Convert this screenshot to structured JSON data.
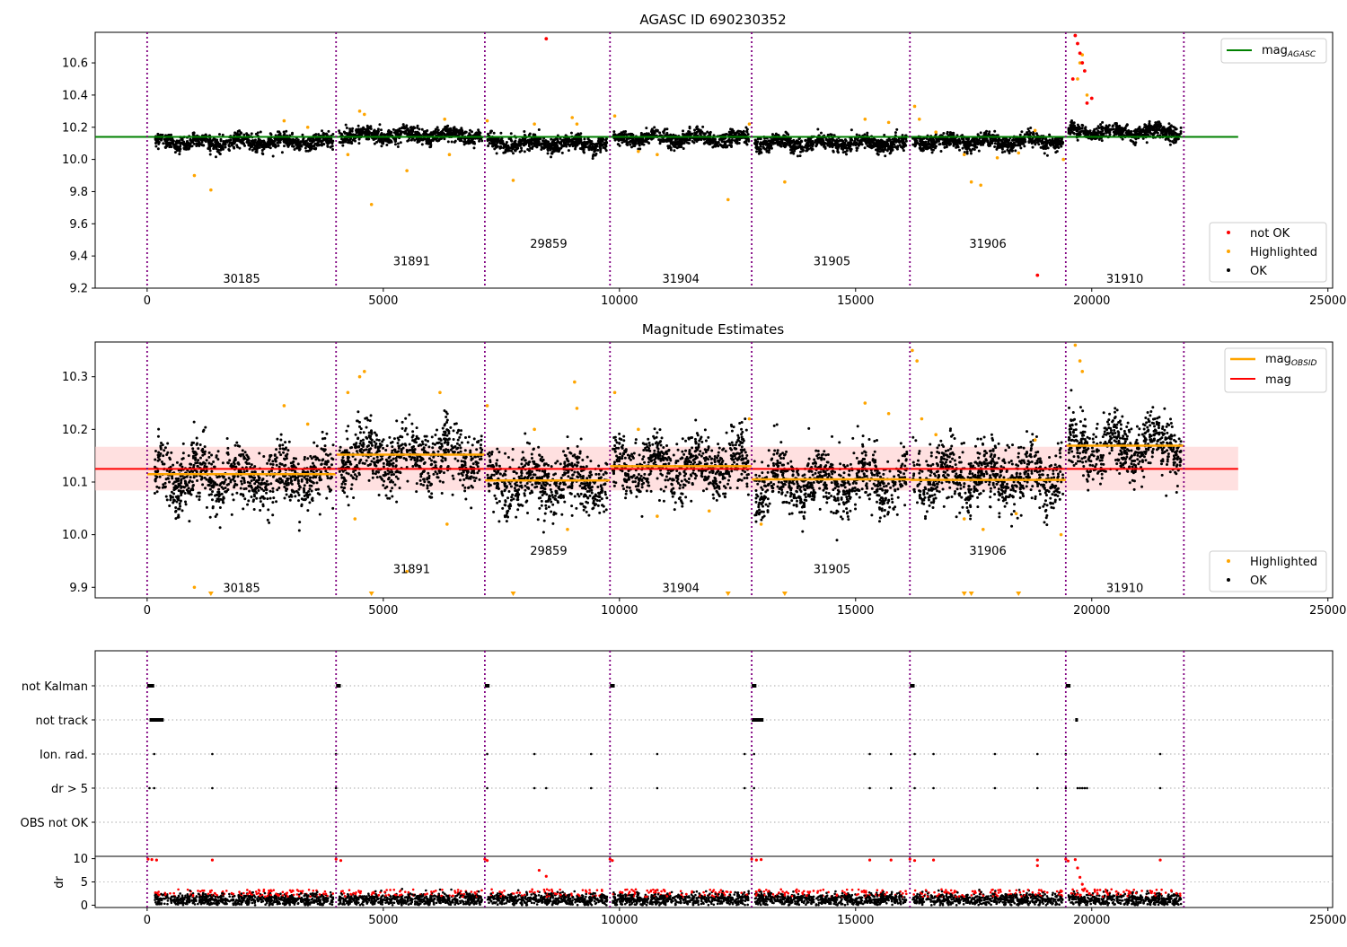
{
  "figure": {
    "lc_title": "AGASC ID 690230352",
    "mag_title": "Magnitude Estimates",
    "colors": {
      "not_ok": "#ff0000",
      "highlighted": "#ffa500",
      "ok": "#000000",
      "mag_agasc_line": "#008000",
      "mag_line": "#ff0000",
      "mag_band": "#ffcccc",
      "obsid_line": "#ffa500",
      "boundary": "#800080"
    }
  },
  "chart_data": [
    {
      "type": "scatter",
      "name": "lightcurve",
      "title": "AGASC ID 690230352",
      "xlim": [
        -1100,
        25100
      ],
      "ylim": [
        9.2,
        10.79
      ],
      "xticks": [
        0,
        5000,
        10000,
        15000,
        20000,
        25000
      ],
      "xtick_labels": [
        "0",
        "5000",
        "10000",
        "15000",
        "20000",
        "25000"
      ],
      "yticks": [
        9.2,
        9.4,
        9.6,
        9.8,
        10.0,
        10.2,
        10.4,
        10.6
      ],
      "ytick_labels": [
        "9.2",
        "9.4",
        "9.6",
        "9.8",
        "10.0",
        "10.2",
        "10.4",
        "10.6"
      ],
      "mag_agasc": 10.14,
      "mag_agasc_xrange": [
        -1100,
        23100
      ],
      "obsid_boundaries": [
        0,
        4000,
        7150,
        9800,
        12800,
        16150,
        19450,
        21950
      ],
      "obsid_labels": [
        {
          "label": "30185",
          "x": 2000,
          "y": 9.26
        },
        {
          "label": "31891",
          "x": 5600,
          "y": 9.37
        },
        {
          "label": "29859",
          "x": 8500,
          "y": 9.48
        },
        {
          "label": "31904",
          "x": 11300,
          "y": 9.26
        },
        {
          "label": "31905",
          "x": 14500,
          "y": 9.37
        },
        {
          "label": "31906",
          "x": 17800,
          "y": 9.48
        },
        {
          "label": "31910",
          "x": 20700,
          "y": 9.26
        }
      ],
      "legend_upper": {
        "position": "upper right",
        "entries": [
          "mag_AGASC"
        ]
      },
      "legend_lower": {
        "position": "lower right",
        "entries": [
          "not OK",
          "Highlighted",
          "OK"
        ]
      },
      "segments": [
        {
          "x": [
            100,
            4000
          ],
          "mean": 10.11,
          "spread": 0.05
        },
        {
          "x": [
            4000,
            7150
          ],
          "mean": 10.15,
          "spread": 0.05
        },
        {
          "x": [
            7150,
            9800
          ],
          "mean": 10.1,
          "spread": 0.05
        },
        {
          "x": [
            9800,
            12800
          ],
          "mean": 10.13,
          "spread": 0.05
        },
        {
          "x": [
            12800,
            16150
          ],
          "mean": 10.1,
          "spread": 0.05
        },
        {
          "x": [
            16150,
            19450
          ],
          "mean": 10.11,
          "spread": 0.05
        },
        {
          "x": [
            19450,
            21950
          ],
          "mean": 10.17,
          "spread": 0.05
        }
      ],
      "highlighted_points": [
        [
          1000,
          9.9
        ],
        [
          1350,
          9.81
        ],
        [
          2900,
          10.24
        ],
        [
          3400,
          10.2
        ],
        [
          4250,
          10.03
        ],
        [
          4500,
          10.3
        ],
        [
          4600,
          10.28
        ],
        [
          4750,
          9.72
        ],
        [
          5500,
          9.93
        ],
        [
          6300,
          10.25
        ],
        [
          6400,
          10.03
        ],
        [
          7200,
          10.24
        ],
        [
          7750,
          9.87
        ],
        [
          8200,
          10.22
        ],
        [
          9000,
          10.26
        ],
        [
          9100,
          10.22
        ],
        [
          9900,
          10.27
        ],
        [
          10400,
          10.05
        ],
        [
          10800,
          10.03
        ],
        [
          12300,
          9.75
        ],
        [
          12750,
          10.22
        ],
        [
          13500,
          9.86
        ],
        [
          15200,
          10.25
        ],
        [
          15700,
          10.23
        ],
        [
          16250,
          10.33
        ],
        [
          16350,
          10.25
        ],
        [
          16700,
          10.17
        ],
        [
          17300,
          10.03
        ],
        [
          17450,
          9.86
        ],
        [
          17650,
          9.84
        ],
        [
          18000,
          10.01
        ],
        [
          18450,
          10.04
        ],
        [
          18800,
          10.18
        ],
        [
          19400,
          10.0
        ],
        [
          19700,
          10.5
        ],
        [
          19750,
          10.6
        ],
        [
          19800,
          10.65
        ],
        [
          19900,
          10.4
        ]
      ],
      "not_ok_points": [
        [
          8450,
          10.75
        ],
        [
          18850,
          9.28
        ],
        [
          19650,
          10.77
        ],
        [
          19700,
          10.72
        ],
        [
          19750,
          10.66
        ],
        [
          19800,
          10.6
        ],
        [
          19850,
          10.55
        ],
        [
          19900,
          10.35
        ],
        [
          20000,
          10.38
        ],
        [
          19600,
          10.5
        ]
      ]
    },
    {
      "type": "scatter",
      "name": "magnitude_estimates",
      "title": "Magnitude Estimates",
      "xlim": [
        -1100,
        25100
      ],
      "ylim": [
        9.88,
        10.366
      ],
      "xticks": [
        0,
        5000,
        10000,
        15000,
        20000,
        25000
      ],
      "xtick_labels": [
        "0",
        "5000",
        "10000",
        "15000",
        "20000",
        "25000"
      ],
      "yticks": [
        9.9,
        10.0,
        10.1,
        10.2,
        10.3
      ],
      "ytick_labels": [
        "9.9",
        "10.0",
        "10.1",
        "10.2",
        "10.3"
      ],
      "mag": 10.125,
      "mag_band": [
        10.084,
        10.167
      ],
      "mag_xrange": [
        -1100,
        23100
      ],
      "mag_obsid": [
        {
          "x": [
            0,
            4000
          ],
          "value": 10.115
        },
        {
          "x": [
            4000,
            7150
          ],
          "value": 10.152
        },
        {
          "x": [
            7150,
            9800
          ],
          "value": 10.103
        },
        {
          "x": [
            9800,
            12800
          ],
          "value": 10.13
        },
        {
          "x": [
            12800,
            16150
          ],
          "value": 10.105
        },
        {
          "x": [
            16150,
            19450
          ],
          "value": 10.104
        },
        {
          "x": [
            19450,
            21950
          ],
          "value": 10.169
        }
      ],
      "obsid_boundaries": [
        0,
        4000,
        7150,
        9800,
        12800,
        16150,
        19450,
        21950
      ],
      "obsid_labels": [
        {
          "label": "30185",
          "x": 2000,
          "y": 9.9
        },
        {
          "label": "31891",
          "x": 5600,
          "y": 9.935
        },
        {
          "label": "29859",
          "x": 8500,
          "y": 9.97
        },
        {
          "label": "31904",
          "x": 11300,
          "y": 9.9
        },
        {
          "label": "31905",
          "x": 14500,
          "y": 9.935
        },
        {
          "label": "31906",
          "x": 17800,
          "y": 9.97
        },
        {
          "label": "31910",
          "x": 20700,
          "y": 9.9
        }
      ],
      "below_axis_markers": [
        1350,
        4750,
        7750,
        12300,
        13500,
        17300,
        17450,
        18450
      ],
      "legend_upper": {
        "position": "upper right",
        "entries": [
          "mag_OBSID",
          "mag"
        ]
      },
      "legend_lower": {
        "position": "lower right",
        "entries": [
          "Highlighted",
          "OK"
        ]
      },
      "segments": [
        {
          "x": [
            100,
            4000
          ],
          "mean": 10.11,
          "spread": 0.06
        },
        {
          "x": [
            4000,
            7150
          ],
          "mean": 10.15,
          "spread": 0.06
        },
        {
          "x": [
            7150,
            9800
          ],
          "mean": 10.1,
          "spread": 0.06
        },
        {
          "x": [
            9800,
            12800
          ],
          "mean": 10.13,
          "spread": 0.06
        },
        {
          "x": [
            12800,
            16150
          ],
          "mean": 10.1,
          "spread": 0.06
        },
        {
          "x": [
            16150,
            19450
          ],
          "mean": 10.11,
          "spread": 0.06
        },
        {
          "x": [
            19450,
            21950
          ],
          "mean": 10.17,
          "spread": 0.06
        }
      ],
      "highlighted_points": [
        [
          1000,
          9.9
        ],
        [
          2900,
          10.245
        ],
        [
          3400,
          10.21
        ],
        [
          4250,
          10.27
        ],
        [
          4400,
          10.03
        ],
        [
          4500,
          10.3
        ],
        [
          4600,
          10.31
        ],
        [
          5500,
          9.93
        ],
        [
          6200,
          10.27
        ],
        [
          6350,
          10.02
        ],
        [
          7200,
          10.245
        ],
        [
          8200,
          10.2
        ],
        [
          8900,
          10.01
        ],
        [
          9050,
          10.29
        ],
        [
          9100,
          10.24
        ],
        [
          9900,
          10.27
        ],
        [
          10400,
          10.2
        ],
        [
          10800,
          10.035
        ],
        [
          11900,
          10.045
        ],
        [
          12750,
          10.22
        ],
        [
          13000,
          10.02
        ],
        [
          15200,
          10.25
        ],
        [
          15700,
          10.23
        ],
        [
          16200,
          10.35
        ],
        [
          16300,
          10.33
        ],
        [
          16400,
          10.22
        ],
        [
          16700,
          10.19
        ],
        [
          17300,
          10.03
        ],
        [
          17700,
          10.01
        ],
        [
          18400,
          10.04
        ],
        [
          18800,
          10.18
        ],
        [
          19350,
          10.0
        ],
        [
          19650,
          10.36
        ],
        [
          19750,
          10.33
        ],
        [
          19800,
          10.31
        ]
      ]
    },
    {
      "type": "scatter",
      "name": "flags",
      "categories": [
        "not Kalman",
        "not track",
        "Ion. rad.",
        "dr > 5",
        "OBS not OK"
      ],
      "xlim": [
        -1100,
        25100
      ],
      "obsid_boundaries": [
        0,
        4000,
        7150,
        9800,
        12800,
        16150,
        19450,
        21950
      ],
      "flags": {
        "not Kalman": [
          [
            0,
            150
          ],
          [
            4000,
            4100
          ],
          [
            7150,
            7250
          ],
          [
            9800,
            9900
          ],
          [
            12800,
            12900
          ],
          [
            16150,
            16250
          ],
          [
            19450,
            19550
          ]
        ],
        "not track": [
          [
            50,
            350
          ],
          [
            12800,
            13050
          ],
          [
            19650,
            19700
          ]
        ],
        "Ion. rad.": [
          150,
          1380,
          4000,
          7200,
          8200,
          9400,
          10800,
          12650,
          12850,
          15300,
          15750,
          16250,
          16650,
          17950,
          18850,
          19450,
          21450
        ],
        "dr > 5": [
          50,
          150,
          1380,
          4000,
          7200,
          8200,
          8450,
          9400,
          10800,
          12650,
          12850,
          15300,
          15750,
          16250,
          16650,
          17950,
          18850,
          19450,
          19700,
          19750,
          19800,
          19850,
          19900,
          21450
        ]
      }
    },
    {
      "type": "scatter",
      "name": "dr",
      "xlim": [
        -1100,
        25100
      ],
      "ylim": [
        -0.5,
        10.5
      ],
      "ylabel": "dr",
      "yticks": [
        0,
        5,
        10
      ],
      "ytick_labels": [
        "0",
        "5",
        "10"
      ],
      "xticks": [
        0,
        5000,
        10000,
        15000,
        20000,
        25000
      ],
      "xtick_labels": [
        "0",
        "5000",
        "10000",
        "15000",
        "20000",
        "25000"
      ],
      "obsid_boundaries": [
        0,
        4000,
        7150,
        9800,
        12800,
        16150,
        19450,
        21950
      ],
      "dr_high_points": [
        [
          20,
          9.9
        ],
        [
          100,
          9.8
        ],
        [
          200,
          9.7
        ],
        [
          4000,
          9.9
        ],
        [
          4100,
          9.6
        ],
        [
          7150,
          9.9
        ],
        [
          7200,
          9.6
        ],
        [
          9800,
          9.9
        ],
        [
          9850,
          9.6
        ],
        [
          12800,
          9.9
        ],
        [
          12900,
          9.7
        ],
        [
          13000,
          9.8
        ],
        [
          16150,
          9.9
        ],
        [
          16250,
          9.6
        ],
        [
          19450,
          9.9
        ],
        [
          19500,
          9.5
        ],
        [
          1380,
          9.7
        ],
        [
          15300,
          9.7
        ],
        [
          15750,
          9.7
        ],
        [
          16650,
          9.7
        ],
        [
          18850,
          9.7
        ],
        [
          18850,
          8.5
        ],
        [
          21450,
          9.7
        ],
        [
          8450,
          6.2
        ],
        [
          8300,
          7.5
        ],
        [
          19650,
          9.8
        ],
        [
          19700,
          8
        ],
        [
          19750,
          6
        ],
        [
          19800,
          4.5
        ],
        [
          19850,
          3.5
        ],
        [
          19900,
          3
        ],
        [
          19950,
          2.5
        ]
      ]
    }
  ]
}
